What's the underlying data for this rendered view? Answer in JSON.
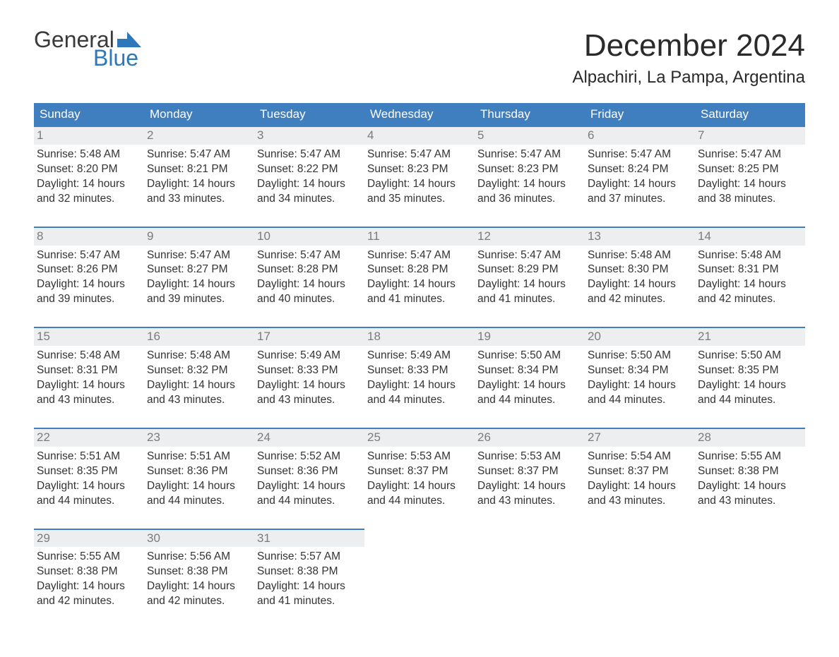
{
  "logo": {
    "word1": "General",
    "word2": "Blue"
  },
  "title": "December 2024",
  "location": "Alpachiri, La Pampa, Argentina",
  "colors": {
    "header_bg": "#3f7fbf",
    "header_text": "#ffffff",
    "daynum_bg": "#eceeef",
    "daynum_text": "#7b7b7b",
    "body_text": "#333333",
    "accent_border": "#3f7fbf",
    "logo_blue": "#2f77bb",
    "logo_gray": "#3a3a3a",
    "page_bg": "#ffffff"
  },
  "typography": {
    "title_fontsize": 44,
    "location_fontsize": 24,
    "weekday_fontsize": 17,
    "cell_fontsize": 15.5,
    "font_family": "Arial"
  },
  "weekdays": [
    "Sunday",
    "Monday",
    "Tuesday",
    "Wednesday",
    "Thursday",
    "Friday",
    "Saturday"
  ],
  "weeks": [
    [
      {
        "n": "1",
        "sunrise": "Sunrise: 5:48 AM",
        "sunset": "Sunset: 8:20 PM",
        "dl1": "Daylight: 14 hours",
        "dl2": "and 32 minutes."
      },
      {
        "n": "2",
        "sunrise": "Sunrise: 5:47 AM",
        "sunset": "Sunset: 8:21 PM",
        "dl1": "Daylight: 14 hours",
        "dl2": "and 33 minutes."
      },
      {
        "n": "3",
        "sunrise": "Sunrise: 5:47 AM",
        "sunset": "Sunset: 8:22 PM",
        "dl1": "Daylight: 14 hours",
        "dl2": "and 34 minutes."
      },
      {
        "n": "4",
        "sunrise": "Sunrise: 5:47 AM",
        "sunset": "Sunset: 8:23 PM",
        "dl1": "Daylight: 14 hours",
        "dl2": "and 35 minutes."
      },
      {
        "n": "5",
        "sunrise": "Sunrise: 5:47 AM",
        "sunset": "Sunset: 8:23 PM",
        "dl1": "Daylight: 14 hours",
        "dl2": "and 36 minutes."
      },
      {
        "n": "6",
        "sunrise": "Sunrise: 5:47 AM",
        "sunset": "Sunset: 8:24 PM",
        "dl1": "Daylight: 14 hours",
        "dl2": "and 37 minutes."
      },
      {
        "n": "7",
        "sunrise": "Sunrise: 5:47 AM",
        "sunset": "Sunset: 8:25 PM",
        "dl1": "Daylight: 14 hours",
        "dl2": "and 38 minutes."
      }
    ],
    [
      {
        "n": "8",
        "sunrise": "Sunrise: 5:47 AM",
        "sunset": "Sunset: 8:26 PM",
        "dl1": "Daylight: 14 hours",
        "dl2": "and 39 minutes."
      },
      {
        "n": "9",
        "sunrise": "Sunrise: 5:47 AM",
        "sunset": "Sunset: 8:27 PM",
        "dl1": "Daylight: 14 hours",
        "dl2": "and 39 minutes."
      },
      {
        "n": "10",
        "sunrise": "Sunrise: 5:47 AM",
        "sunset": "Sunset: 8:28 PM",
        "dl1": "Daylight: 14 hours",
        "dl2": "and 40 minutes."
      },
      {
        "n": "11",
        "sunrise": "Sunrise: 5:47 AM",
        "sunset": "Sunset: 8:28 PM",
        "dl1": "Daylight: 14 hours",
        "dl2": "and 41 minutes."
      },
      {
        "n": "12",
        "sunrise": "Sunrise: 5:47 AM",
        "sunset": "Sunset: 8:29 PM",
        "dl1": "Daylight: 14 hours",
        "dl2": "and 41 minutes."
      },
      {
        "n": "13",
        "sunrise": "Sunrise: 5:48 AM",
        "sunset": "Sunset: 8:30 PM",
        "dl1": "Daylight: 14 hours",
        "dl2": "and 42 minutes."
      },
      {
        "n": "14",
        "sunrise": "Sunrise: 5:48 AM",
        "sunset": "Sunset: 8:31 PM",
        "dl1": "Daylight: 14 hours",
        "dl2": "and 42 minutes."
      }
    ],
    [
      {
        "n": "15",
        "sunrise": "Sunrise: 5:48 AM",
        "sunset": "Sunset: 8:31 PM",
        "dl1": "Daylight: 14 hours",
        "dl2": "and 43 minutes."
      },
      {
        "n": "16",
        "sunrise": "Sunrise: 5:48 AM",
        "sunset": "Sunset: 8:32 PM",
        "dl1": "Daylight: 14 hours",
        "dl2": "and 43 minutes."
      },
      {
        "n": "17",
        "sunrise": "Sunrise: 5:49 AM",
        "sunset": "Sunset: 8:33 PM",
        "dl1": "Daylight: 14 hours",
        "dl2": "and 43 minutes."
      },
      {
        "n": "18",
        "sunrise": "Sunrise: 5:49 AM",
        "sunset": "Sunset: 8:33 PM",
        "dl1": "Daylight: 14 hours",
        "dl2": "and 44 minutes."
      },
      {
        "n": "19",
        "sunrise": "Sunrise: 5:50 AM",
        "sunset": "Sunset: 8:34 PM",
        "dl1": "Daylight: 14 hours",
        "dl2": "and 44 minutes."
      },
      {
        "n": "20",
        "sunrise": "Sunrise: 5:50 AM",
        "sunset": "Sunset: 8:34 PM",
        "dl1": "Daylight: 14 hours",
        "dl2": "and 44 minutes."
      },
      {
        "n": "21",
        "sunrise": "Sunrise: 5:50 AM",
        "sunset": "Sunset: 8:35 PM",
        "dl1": "Daylight: 14 hours",
        "dl2": "and 44 minutes."
      }
    ],
    [
      {
        "n": "22",
        "sunrise": "Sunrise: 5:51 AM",
        "sunset": "Sunset: 8:35 PM",
        "dl1": "Daylight: 14 hours",
        "dl2": "and 44 minutes."
      },
      {
        "n": "23",
        "sunrise": "Sunrise: 5:51 AM",
        "sunset": "Sunset: 8:36 PM",
        "dl1": "Daylight: 14 hours",
        "dl2": "and 44 minutes."
      },
      {
        "n": "24",
        "sunrise": "Sunrise: 5:52 AM",
        "sunset": "Sunset: 8:36 PM",
        "dl1": "Daylight: 14 hours",
        "dl2": "and 44 minutes."
      },
      {
        "n": "25",
        "sunrise": "Sunrise: 5:53 AM",
        "sunset": "Sunset: 8:37 PM",
        "dl1": "Daylight: 14 hours",
        "dl2": "and 44 minutes."
      },
      {
        "n": "26",
        "sunrise": "Sunrise: 5:53 AM",
        "sunset": "Sunset: 8:37 PM",
        "dl1": "Daylight: 14 hours",
        "dl2": "and 43 minutes."
      },
      {
        "n": "27",
        "sunrise": "Sunrise: 5:54 AM",
        "sunset": "Sunset: 8:37 PM",
        "dl1": "Daylight: 14 hours",
        "dl2": "and 43 minutes."
      },
      {
        "n": "28",
        "sunrise": "Sunrise: 5:55 AM",
        "sunset": "Sunset: 8:38 PM",
        "dl1": "Daylight: 14 hours",
        "dl2": "and 43 minutes."
      }
    ],
    [
      {
        "n": "29",
        "sunrise": "Sunrise: 5:55 AM",
        "sunset": "Sunset: 8:38 PM",
        "dl1": "Daylight: 14 hours",
        "dl2": "and 42 minutes."
      },
      {
        "n": "30",
        "sunrise": "Sunrise: 5:56 AM",
        "sunset": "Sunset: 8:38 PM",
        "dl1": "Daylight: 14 hours",
        "dl2": "and 42 minutes."
      },
      {
        "n": "31",
        "sunrise": "Sunrise: 5:57 AM",
        "sunset": "Sunset: 8:38 PM",
        "dl1": "Daylight: 14 hours",
        "dl2": "and 41 minutes."
      },
      {
        "empty": true
      },
      {
        "empty": true
      },
      {
        "empty": true
      },
      {
        "empty": true
      }
    ]
  ]
}
